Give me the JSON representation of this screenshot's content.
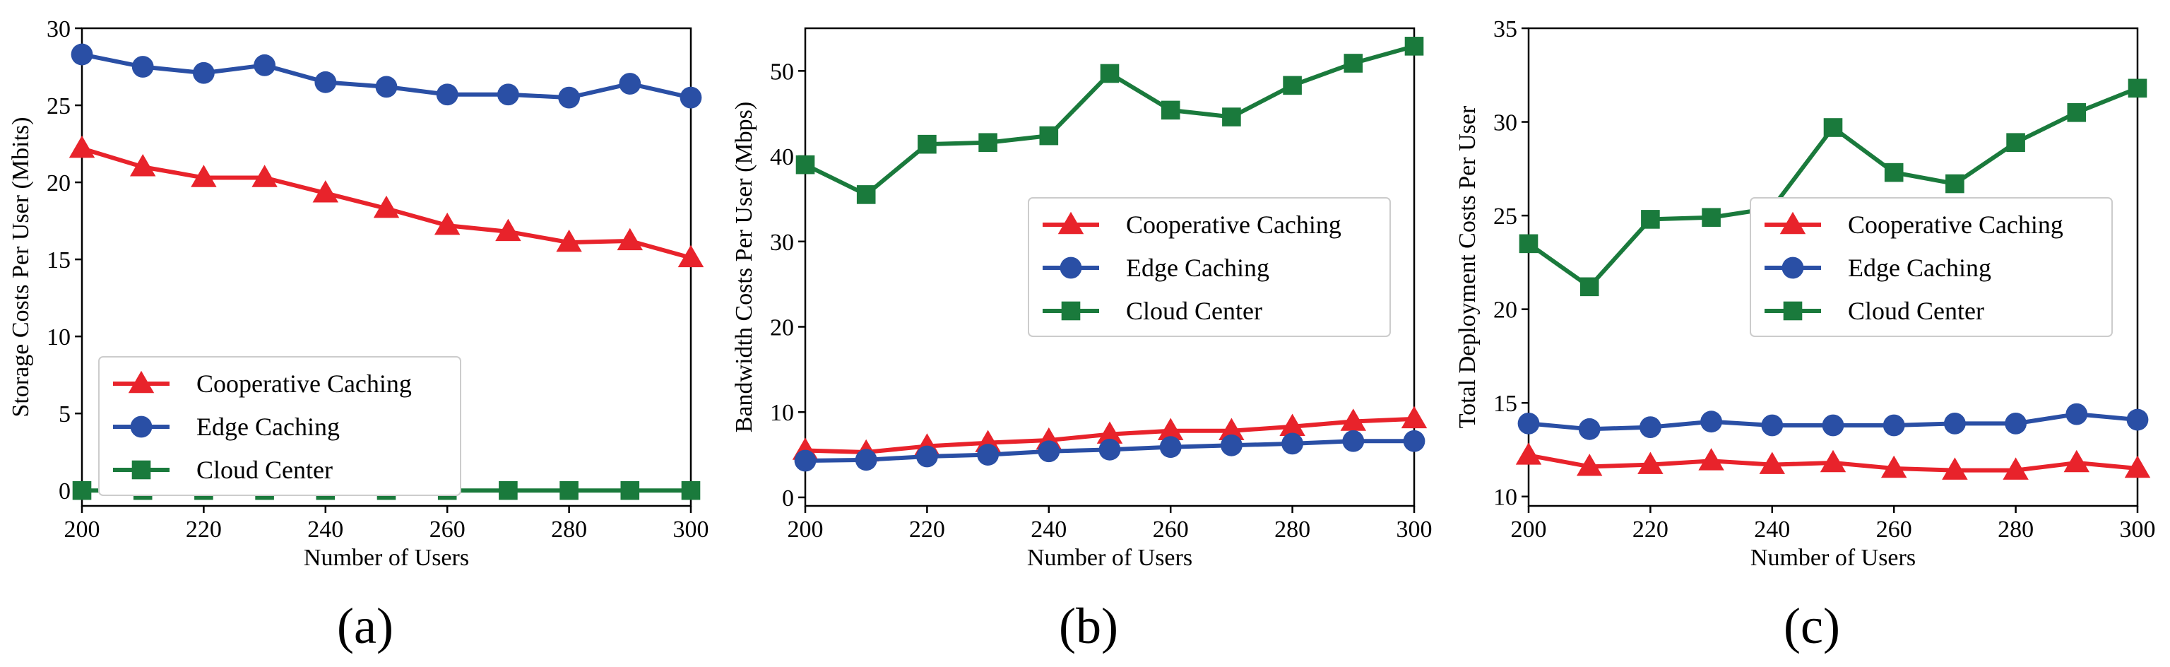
{
  "colors": {
    "cooperative": "#e8232b",
    "edge": "#2a4fa5",
    "cloud": "#1a7a3c"
  },
  "chart_data": [
    {
      "type": "line",
      "caption": "(a)",
      "xlabel": "Number of Users",
      "ylabel": "Storage Costs Per User (Mbits)",
      "xlim": [
        200,
        300
      ],
      "ylim": [
        -1,
        30
      ],
      "xticks": [
        200,
        220,
        240,
        260,
        280,
        300
      ],
      "yticks": [
        0,
        5,
        10,
        15,
        20,
        25,
        30
      ],
      "x": [
        200,
        210,
        220,
        230,
        240,
        250,
        260,
        270,
        280,
        290,
        300
      ],
      "legend_position": "lower-left",
      "series": [
        {
          "name": "Cooperative Caching",
          "marker": "triangle",
          "color_key": "cooperative",
          "values": [
            22.2,
            21.0,
            20.3,
            20.3,
            19.3,
            18.3,
            17.2,
            16.8,
            16.1,
            16.2,
            15.1
          ]
        },
        {
          "name": "Edge Caching",
          "marker": "circle",
          "color_key": "edge",
          "values": [
            28.3,
            27.5,
            27.1,
            27.6,
            26.5,
            26.2,
            25.7,
            25.7,
            25.5,
            26.4,
            25.5
          ]
        },
        {
          "name": "Cloud Center",
          "marker": "square",
          "color_key": "cloud",
          "values": [
            0,
            0,
            0,
            0,
            0,
            0,
            0,
            0,
            0,
            0,
            0
          ]
        }
      ]
    },
    {
      "type": "line",
      "caption": "(b)",
      "xlabel": "Number of Users",
      "ylabel": "Bandwidth Costs Per User (Mbps)",
      "xlim": [
        200,
        300
      ],
      "ylim": [
        -1,
        55
      ],
      "xticks": [
        200,
        220,
        240,
        260,
        280,
        300
      ],
      "yticks": [
        0,
        10,
        20,
        30,
        40,
        50
      ],
      "x": [
        200,
        210,
        220,
        230,
        240,
        250,
        260,
        270,
        280,
        290,
        300
      ],
      "legend_position": "center-right",
      "series": [
        {
          "name": "Cooperative Caching",
          "marker": "triangle",
          "color_key": "cooperative",
          "values": [
            5.5,
            5.3,
            6.0,
            6.4,
            6.7,
            7.4,
            7.8,
            7.8,
            8.3,
            8.9,
            9.2
          ]
        },
        {
          "name": "Edge Caching",
          "marker": "circle",
          "color_key": "edge",
          "values": [
            4.3,
            4.4,
            4.8,
            5.0,
            5.4,
            5.6,
            5.9,
            6.1,
            6.3,
            6.6,
            6.6
          ]
        },
        {
          "name": "Cloud Center",
          "marker": "square",
          "color_key": "cloud",
          "values": [
            39.0,
            35.5,
            41.4,
            41.6,
            42.4,
            49.7,
            45.4,
            44.6,
            48.3,
            50.9,
            52.9
          ]
        }
      ]
    },
    {
      "type": "line",
      "caption": "(c)",
      "xlabel": "Number of Users",
      "ylabel": "Total Deployment Costs Per User",
      "xlim": [
        200,
        300
      ],
      "ylim": [
        9.5,
        35
      ],
      "xticks": [
        200,
        220,
        240,
        260,
        280,
        300
      ],
      "yticks": [
        10,
        15,
        20,
        25,
        30,
        35
      ],
      "x": [
        200,
        210,
        220,
        230,
        240,
        250,
        260,
        270,
        280,
        290,
        300
      ],
      "legend_position": "center-right",
      "series": [
        {
          "name": "Cooperative Caching",
          "marker": "triangle",
          "color_key": "cooperative",
          "values": [
            12.2,
            11.6,
            11.7,
            11.9,
            11.7,
            11.8,
            11.5,
            11.4,
            11.4,
            11.8,
            11.5
          ]
        },
        {
          "name": "Edge Caching",
          "marker": "circle",
          "color_key": "edge",
          "values": [
            13.9,
            13.6,
            13.7,
            14.0,
            13.8,
            13.8,
            13.8,
            13.9,
            13.9,
            14.4,
            14.1
          ]
        },
        {
          "name": "Cloud Center",
          "marker": "square",
          "color_key": "cloud",
          "values": [
            23.5,
            21.2,
            24.8,
            24.9,
            25.4,
            29.7,
            27.3,
            26.7,
            28.9,
            30.5,
            31.8
          ]
        }
      ]
    }
  ]
}
